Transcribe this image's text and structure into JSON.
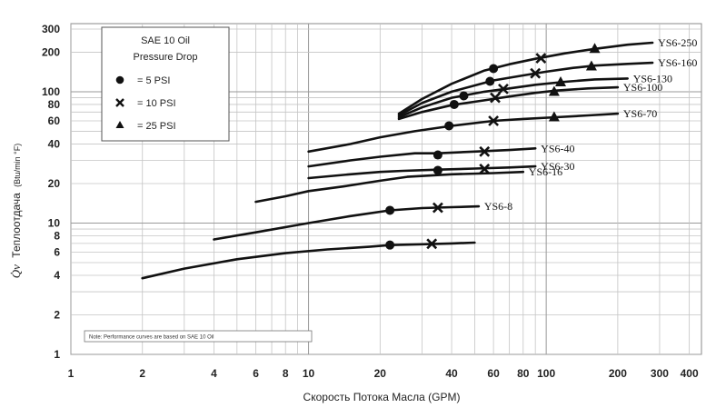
{
  "chart_data": {
    "type": "line",
    "title": "",
    "xlabel": "Скорость Потока Масла (GPM)",
    "ylabel": {
      "symbol": "Q̇v",
      "text": "Теплоотдача",
      "unit": "(Btu/min °F)"
    },
    "x_scale": "log",
    "y_scale": "log",
    "xlim": [
      1,
      450
    ],
    "ylim": [
      1,
      330
    ],
    "grid": true,
    "x_ticks": [
      {
        "v": 1,
        "label": "1"
      },
      {
        "v": 2,
        "label": "2"
      },
      {
        "v": 4,
        "label": "4"
      },
      {
        "v": 6,
        "label": "6"
      },
      {
        "v": 8,
        "label": "8"
      },
      {
        "v": 10,
        "label": "10"
      },
      {
        "v": 20,
        "label": "20"
      },
      {
        "v": 40,
        "label": "40"
      },
      {
        "v": 60,
        "label": "60"
      },
      {
        "v": 80,
        "label": "80"
      },
      {
        "v": 100,
        "label": "100"
      },
      {
        "v": 200,
        "label": "200"
      },
      {
        "v": 300,
        "label": "300"
      },
      {
        "v": 400,
        "label": "400"
      }
    ],
    "y_ticks": [
      {
        "v": 1,
        "label": "1"
      },
      {
        "v": 2,
        "label": "2"
      },
      {
        "v": 4,
        "label": "4"
      },
      {
        "v": 6,
        "label": "6"
      },
      {
        "v": 8,
        "label": "8"
      },
      {
        "v": 10,
        "label": "10"
      },
      {
        "v": 20,
        "label": "20"
      },
      {
        "v": 40,
        "label": "40"
      },
      {
        "v": 60,
        "label": "60"
      },
      {
        "v": 80,
        "label": "80"
      },
      {
        "v": 100,
        "label": "100"
      },
      {
        "v": 200,
        "label": "200"
      },
      {
        "v": 300,
        "label": "300"
      }
    ],
    "legend": {
      "title": [
        "SAE 10 Oil",
        "Pressure Drop"
      ],
      "placement": "top-left",
      "items": [
        {
          "marker": "circle",
          "label": "= 5 PSI"
        },
        {
          "marker": "x",
          "label": "= 10 PSI"
        },
        {
          "marker": "triangle",
          "label": "= 25 PSI"
        }
      ]
    },
    "note": "Note: Performance curves are based on SAE 10 Oil",
    "series": [
      {
        "name": "YS6-250",
        "points": [
          [
            24,
            68
          ],
          [
            30,
            88
          ],
          [
            40,
            115
          ],
          [
            55,
            145
          ],
          [
            70,
            162
          ],
          [
            90,
            178
          ],
          [
            120,
            196
          ],
          [
            160,
            212
          ],
          [
            220,
            228
          ],
          [
            280,
            236
          ]
        ],
        "markers": [
          {
            "type": "circle",
            "x": 60,
            "y": 150
          },
          {
            "type": "x",
            "x": 95,
            "y": 180
          },
          {
            "type": "triangle",
            "x": 160,
            "y": 212
          }
        ]
      },
      {
        "name": "YS6-160",
        "points": [
          [
            24,
            66
          ],
          [
            30,
            82
          ],
          [
            40,
            100
          ],
          [
            60,
            122
          ],
          [
            80,
            133
          ],
          [
            100,
            142
          ],
          [
            130,
            152
          ],
          [
            160,
            158
          ],
          [
            220,
            163
          ],
          [
            280,
            166
          ]
        ],
        "markers": [
          {
            "type": "circle",
            "x": 58,
            "y": 120
          },
          {
            "type": "x",
            "x": 90,
            "y": 138
          },
          {
            "type": "triangle",
            "x": 155,
            "y": 156
          }
        ]
      },
      {
        "name": "YS6-130",
        "points": [
          [
            24,
            64
          ],
          [
            30,
            76
          ],
          [
            40,
            90
          ],
          [
            55,
            100
          ],
          [
            70,
            106
          ],
          [
            90,
            113
          ],
          [
            120,
            119
          ],
          [
            160,
            124
          ],
          [
            220,
            126
          ]
        ],
        "markers": [
          {
            "type": "circle",
            "x": 45,
            "y": 93
          },
          {
            "type": "x",
            "x": 66,
            "y": 105
          },
          {
            "type": "triangle",
            "x": 115,
            "y": 118
          }
        ]
      },
      {
        "name": "YS6-100",
        "points": [
          [
            24,
            62
          ],
          [
            30,
            70
          ],
          [
            40,
            79
          ],
          [
            55,
            86
          ],
          [
            70,
            92
          ],
          [
            90,
            98
          ],
          [
            110,
            102
          ],
          [
            150,
            106
          ],
          [
            200,
            108
          ]
        ],
        "markers": [
          {
            "type": "circle",
            "x": 41,
            "y": 80
          },
          {
            "type": "x",
            "x": 61,
            "y": 90
          },
          {
            "type": "triangle",
            "x": 108,
            "y": 100
          }
        ]
      },
      {
        "name": "YS6-70",
        "points": [
          [
            10,
            35
          ],
          [
            15,
            40
          ],
          [
            20,
            45
          ],
          [
            28,
            50
          ],
          [
            40,
            55
          ],
          [
            60,
            60
          ],
          [
            80,
            62
          ],
          [
            110,
            64
          ],
          [
            150,
            66
          ],
          [
            200,
            68
          ]
        ],
        "markers": [
          {
            "type": "circle",
            "x": 39,
            "y": 55
          },
          {
            "type": "x",
            "x": 60,
            "y": 60
          },
          {
            "type": "triangle",
            "x": 108,
            "y": 64
          }
        ]
      },
      {
        "name": "YS6-40",
        "points": [
          [
            10,
            27
          ],
          [
            15,
            30
          ],
          [
            20,
            32
          ],
          [
            28,
            34
          ],
          [
            35,
            34
          ],
          [
            50,
            35
          ],
          [
            70,
            36
          ],
          [
            90,
            37
          ]
        ],
        "markers": [
          {
            "type": "circle",
            "x": 35,
            "y": 33
          },
          {
            "type": "x",
            "x": 55,
            "y": 35
          }
        ]
      },
      {
        "name": "YS6-30",
        "points": [
          [
            10,
            22
          ],
          [
            15,
            23.5
          ],
          [
            20,
            24.5
          ],
          [
            25,
            25
          ],
          [
            35,
            25.5
          ],
          [
            50,
            26
          ],
          [
            70,
            26.5
          ],
          [
            90,
            27
          ]
        ],
        "markers": [
          {
            "type": "circle",
            "x": 35,
            "y": 25.2
          },
          {
            "type": "x",
            "x": 55,
            "y": 25.8
          }
        ]
      },
      {
        "name": "YS6-16",
        "points": [
          [
            6,
            14.5
          ],
          [
            8,
            16
          ],
          [
            10,
            17.5
          ],
          [
            14,
            19
          ],
          [
            20,
            21
          ],
          [
            26,
            22.5
          ],
          [
            40,
            23.5
          ],
          [
            60,
            24
          ],
          [
            80,
            24.5
          ]
        ],
        "markers": []
      },
      {
        "name": "YS6-8",
        "points": [
          [
            4,
            7.5
          ],
          [
            6,
            8.5
          ],
          [
            10,
            10
          ],
          [
            15,
            11.3
          ],
          [
            22,
            12.5
          ],
          [
            30,
            13
          ],
          [
            40,
            13.2
          ],
          [
            52,
            13.4
          ]
        ],
        "markers": [
          {
            "type": "circle",
            "x": 22,
            "y": 12.5
          },
          {
            "type": "x",
            "x": 35,
            "y": 13.1
          }
        ]
      },
      {
        "name": "",
        "points": [
          [
            2,
            3.8
          ],
          [
            3,
            4.5
          ],
          [
            5,
            5.3
          ],
          [
            8,
            5.9
          ],
          [
            12,
            6.3
          ],
          [
            18,
            6.6
          ],
          [
            22,
            6.8
          ],
          [
            30,
            6.9
          ],
          [
            40,
            7
          ],
          [
            50,
            7.1
          ]
        ],
        "markers": [
          {
            "type": "circle",
            "x": 22,
            "y": 6.8
          },
          {
            "type": "x",
            "x": 33,
            "y": 6.95
          }
        ]
      }
    ]
  }
}
